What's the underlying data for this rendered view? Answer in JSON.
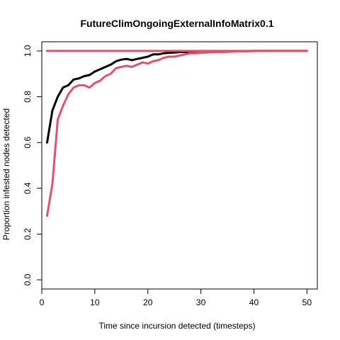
{
  "chart_data": {
    "type": "line",
    "title": "FutureClimOngoingExternalInfoMatrix0.1",
    "xlabel": "Time since incursion detected (timesteps)",
    "ylabel": "Proportion infested nodes detected",
    "xlim": [
      0,
      51.96
    ],
    "ylim": [
      -0.04,
      1.04
    ],
    "xticks": [
      0,
      10,
      20,
      30,
      40,
      50
    ],
    "yticks": [
      0.0,
      0.2,
      0.4,
      0.6,
      0.8,
      1.0
    ],
    "xtick_labels": [
      "0",
      "10",
      "20",
      "30",
      "40",
      "50"
    ],
    "ytick_labels": [
      "0.0",
      "0.2",
      "0.4",
      "0.6",
      "0.8",
      "1.0"
    ],
    "grid": false,
    "series": [
      {
        "color": "#000000",
        "x": [
          1,
          2,
          3,
          4,
          5,
          6,
          7,
          8,
          9,
          10,
          11,
          12,
          13,
          14,
          15,
          16,
          17,
          18,
          19,
          20,
          21,
          22,
          23,
          24,
          25,
          26,
          27,
          28,
          29,
          30,
          31,
          32,
          33,
          34,
          35,
          36,
          37,
          38,
          39,
          40,
          41,
          42,
          43,
          44,
          45,
          46,
          47,
          48,
          49,
          50
        ],
        "y": [
          0.6,
          0.74,
          0.8,
          0.84,
          0.85,
          0.875,
          0.88,
          0.89,
          0.895,
          0.91,
          0.92,
          0.93,
          0.94,
          0.955,
          0.962,
          0.965,
          0.96,
          0.965,
          0.97,
          0.975,
          0.985,
          0.985,
          0.99,
          0.992,
          0.993,
          0.995,
          0.995,
          0.996,
          0.997,
          0.998,
          0.998,
          0.998,
          0.998,
          0.999,
          0.999,
          0.999,
          0.999,
          0.999,
          0.999,
          1.0,
          1.0,
          1.0,
          1.0,
          1.0,
          1.0,
          1.0,
          1.0,
          1.0,
          1.0,
          1.0
        ]
      },
      {
        "color": "#DF536B",
        "x": [
          1,
          2,
          3,
          4,
          5,
          6,
          7,
          8,
          9,
          10,
          11,
          12,
          13,
          14,
          15,
          16,
          17,
          18,
          19,
          20,
          21,
          22,
          23,
          24,
          25,
          26,
          27,
          28,
          29,
          30,
          31,
          32,
          33,
          34,
          35,
          36,
          37,
          38,
          39,
          40,
          41,
          42,
          43,
          44,
          45,
          46,
          47,
          48,
          49,
          50
        ],
        "y": [
          0.28,
          0.42,
          0.7,
          0.76,
          0.81,
          0.84,
          0.85,
          0.85,
          0.84,
          0.86,
          0.87,
          0.89,
          0.9,
          0.925,
          0.93,
          0.935,
          0.93,
          0.94,
          0.95,
          0.945,
          0.955,
          0.96,
          0.97,
          0.975,
          0.975,
          0.98,
          0.985,
          0.99,
          0.99,
          0.992,
          0.993,
          0.994,
          0.995,
          0.995,
          0.996,
          0.997,
          0.998,
          0.998,
          0.999,
          0.999,
          1.0,
          1.0,
          1.0,
          1.0,
          1.0,
          1.0,
          1.0,
          1.0,
          1.0,
          1.0
        ]
      },
      {
        "color": "#DF536B",
        "x": [
          1,
          50
        ],
        "y": [
          1.0,
          1.0
        ]
      }
    ]
  }
}
